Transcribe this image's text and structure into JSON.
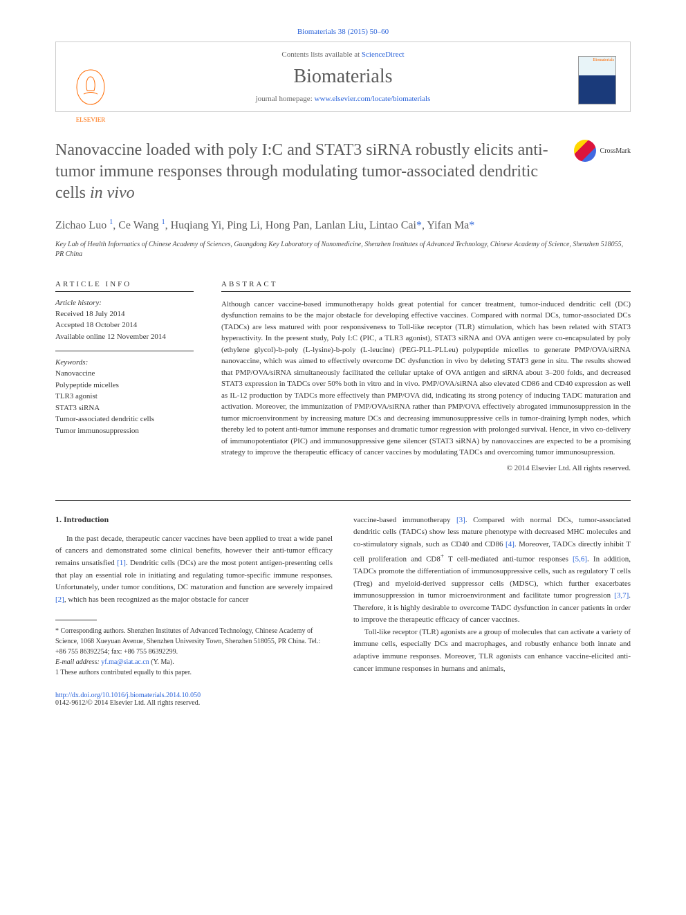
{
  "citation": "Biomaterials 38 (2015) 50–60",
  "header": {
    "contents_prefix": "Contents lists available at ",
    "contents_link": "ScienceDirect",
    "journal_name": "Biomaterials",
    "homepage_prefix": "journal homepage: ",
    "homepage_url": "www.elsevier.com/locate/biomaterials",
    "publisher": "ELSEVIER",
    "cover_label": "Biomaterials"
  },
  "title": {
    "main": "Nanovaccine loaded with poly I:C and STAT3 siRNA robustly elicits anti-tumor immune responses through modulating tumor-associated dendritic cells ",
    "italic": "in vivo"
  },
  "crossmark": "CrossMark",
  "authors_html": "Zichao Luo <sup>1</sup>, Ce Wang <sup>1</sup>, Huqiang Yi, Ping Li, Hong Pan, Lanlan Liu, Lintao Cai<span class=\"ast\">*</span>, Yifan Ma<span class=\"ast\">*</span>",
  "affiliation": "Key Lab of Health Informatics of Chinese Academy of Sciences, Guangdong Key Laboratory of Nanomedicine, Shenzhen Institutes of Advanced Technology, Chinese Academy of Science, Shenzhen 518055, PR China",
  "article_info": {
    "heading": "ARTICLE INFO",
    "history_label": "Article history:",
    "received": "Received 18 July 2014",
    "accepted": "Accepted 18 October 2014",
    "available": "Available online 12 November 2014",
    "keywords_label": "Keywords:",
    "keywords": [
      "Nanovaccine",
      "Polypeptide micelles",
      "TLR3 agonist",
      "STAT3 siRNA",
      "Tumor-associated dendritic cells",
      "Tumor immunosuppression"
    ]
  },
  "abstract": {
    "heading": "ABSTRACT",
    "text": "Although cancer vaccine-based immunotherapy holds great potential for cancer treatment, tumor-induced dendritic cell (DC) dysfunction remains to be the major obstacle for developing effective vaccines. Compared with normal DCs, tumor-associated DCs (TADCs) are less matured with poor responsiveness to Toll-like receptor (TLR) stimulation, which has been related with STAT3 hyperactivity. In the present study, Poly I:C (PIC, a TLR3 agonist), STAT3 siRNA and OVA antigen were co-encapsulated by poly (ethylene glycol)-b-poly (L-lysine)-b-poly (L-leucine) (PEG-PLL-PLLeu) polypeptide micelles to generate PMP/OVA/siRNA nanovaccine, which was aimed to effectively overcome DC dysfunction in vivo by deleting STAT3 gene in situ. The results showed that PMP/OVA/siRNA simultaneously facilitated the cellular uptake of OVA antigen and siRNA about 3–200 folds, and decreased STAT3 expression in TADCs over 50% both in vitro and in vivo. PMP/OVA/siRNA also elevated CD86 and CD40 expression as well as IL-12 production by TADCs more effectively than PMP/OVA did, indicating its strong potency of inducing TADC maturation and activation. Moreover, the immunization of PMP/OVA/siRNA rather than PMP/OVA effectively abrogated immunosuppression in the tumor microenvironment by increasing mature DCs and decreasing immunosuppressive cells in tumor-draining lymph nodes, which thereby led to potent anti-tumor immune responses and dramatic tumor regression with prolonged survival. Hence, in vivo co-delivery of immunopotentiator (PIC) and immunosuppressive gene silencer (STAT3 siRNA) by nanovaccines are expected to be a promising strategy to improve the therapeutic efficacy of cancer vaccines by modulating TADCs and overcoming tumor immunosupression.",
    "copyright": "© 2014 Elsevier Ltd. All rights reserved."
  },
  "body": {
    "section1_heading": "1. Introduction",
    "col1_p1": "In the past decade, therapeutic cancer vaccines have been applied to treat a wide panel of cancers and demonstrated some clinical benefits, however their anti-tumor efficacy remains unsatisfied [1]. Dendritic cells (DCs) are the most potent antigen-presenting cells that play an essential role in initiating and regulating tumor-specific immune responses. Unfortunately, under tumor conditions, DC maturation and function are severely impaired [2], which has been recognized as the major obstacle for cancer",
    "col2_p1": "vaccine-based immunotherapy [3]. Compared with normal DCs, tumor-associated dendritic cells (TADCs) show less mature phenotype with decreased MHC molecules and co-stimulatory signals, such as CD40 and CD86 [4]. Moreover, TADCs directly inhibit T cell proliferation and CD8+ T cell-mediated anti-tumor responses [5,6]. In addition, TADCs promote the differentiation of immunosuppressive cells, such as regulatory T cells (Treg) and myeloid-derived suppressor cells (MDSC), which further exacerbates immunosuppression in tumor microenvironment and facilitate tumor progression [3,7]. Therefore, it is highly desirable to overcome TADC dysfunction in cancer patients in order to improve the therapeutic efficacy of cancer vaccines.",
    "col2_p2": "Toll-like receptor (TLR) agonists are a group of molecules that can activate a variety of immune cells, especially DCs and macrophages, and robustly enhance both innate and adaptive immune responses. Moreover, TLR agonists can enhance vaccine-elicited anti-cancer immune responses in humans and animals,"
  },
  "footnotes": {
    "corresponding": "* Corresponding authors. Shenzhen Institutes of Advanced Technology, Chinese Academy of Science, 1068 Xueyuan Avenue, Shenzhen University Town, Shenzhen 518055, PR China. Tel.: +86 755 86392254; fax: +86 755 86392299.",
    "email_label": "E-mail address: ",
    "email": "yf.ma@siat.ac.cn",
    "email_suffix": " (Y. Ma).",
    "equal": "1 These authors contributed equally to this paper."
  },
  "doi": {
    "url": "http://dx.doi.org/10.1016/j.biomaterials.2014.10.050",
    "issn_copyright": "0142-9612/© 2014 Elsevier Ltd. All rights reserved."
  },
  "refs": {
    "r1": "[1]",
    "r2": "[2]",
    "r3": "[3]",
    "r4": "[4]",
    "r56": "[5,6]",
    "r37": "[3,7]"
  },
  "colors": {
    "link": "#2962d9",
    "heading": "#5a5a5a",
    "orange": "#ff6a00"
  }
}
